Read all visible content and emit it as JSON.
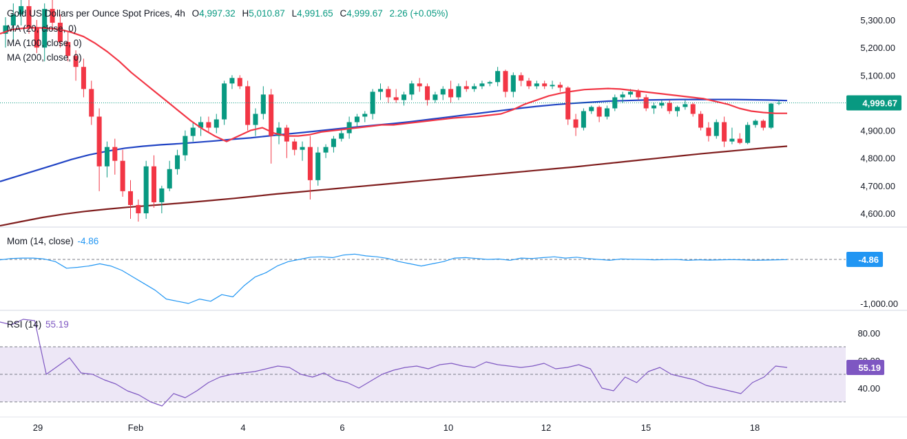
{
  "legend": {
    "symbol": "Gold US Dollars per Ounce Spot Prices",
    "interval": "4h",
    "o_label": "O",
    "o_value": "4,997.32",
    "h_label": "H",
    "h_value": "5,010.87",
    "l_label": "L",
    "l_value": "4,991.65",
    "c_label": "C",
    "c_value": "4,999.67",
    "change": "2.26 (+0.05%)",
    "ma20": "MA (20, close, 0)",
    "ma100": "MA (100, close, 0)",
    "ma200": "MA (200, close, 0)"
  },
  "mom": {
    "label": "Mom (14, close)",
    "value": "-4.86"
  },
  "rsi": {
    "label": "RSI (14)",
    "value": "55.19"
  },
  "colors": {
    "up": "#089981",
    "down": "#f23645",
    "ma20": "#f23645",
    "ma100": "#2144c4",
    "ma200": "#7f1d1d",
    "mom": "#2196f3",
    "rsi": "#7e57c2",
    "rsi_band": "#ede7f6"
  },
  "chart_data": [
    {
      "type": "candlestick",
      "title": "Gold US Dollars per Ounce Spot Prices, 4h",
      "ylim": [
        4560,
        5330
      ],
      "y_ticks": [
        "5,300.00",
        "5,200.00",
        "5,100.00",
        "5,000.00",
        "4,900.00",
        "4,800.00",
        "4,700.00",
        "4,600.00"
      ],
      "x_ticks": [
        "29",
        "Feb",
        "4",
        "6",
        "10",
        "12",
        "15",
        "18"
      ],
      "last_price_label": "4,999.67",
      "ohlc": [
        [
          5250,
          5310,
          5200,
          5280
        ],
        [
          5280,
          5360,
          5220,
          5320
        ],
        [
          5320,
          5380,
          5280,
          5350
        ],
        [
          5350,
          5380,
          5250,
          5270
        ],
        [
          5270,
          5300,
          5180,
          5200
        ],
        [
          5200,
          5360,
          5150,
          5340
        ],
        [
          5340,
          5400,
          5260,
          5290
        ],
        [
          5290,
          5320,
          5200,
          5220
        ],
        [
          5220,
          5260,
          5150,
          5170
        ],
        [
          5170,
          5190,
          5080,
          5130
        ],
        [
          5130,
          5160,
          5020,
          5050
        ],
        [
          5050,
          5080,
          4920,
          4950
        ],
        [
          4950,
          4980,
          4680,
          4770
        ],
        [
          4770,
          4860,
          4730,
          4840
        ],
        [
          4840,
          4870,
          4740,
          4790
        ],
        [
          4790,
          4830,
          4660,
          4680
        ],
        [
          4680,
          4720,
          4580,
          4630
        ],
        [
          4630,
          4650,
          4570,
          4600
        ],
        [
          4600,
          4790,
          4580,
          4770
        ],
        [
          4770,
          4810,
          4620,
          4640
        ],
        [
          4640,
          4700,
          4600,
          4690
        ],
        [
          4690,
          4790,
          4680,
          4760
        ],
        [
          4760,
          4830,
          4740,
          4810
        ],
        [
          4810,
          4900,
          4790,
          4880
        ],
        [
          4880,
          4930,
          4860,
          4910
        ],
        [
          4910,
          4950,
          4880,
          4930
        ],
        [
          4930,
          4950,
          4890,
          4910
        ],
        [
          4910,
          4960,
          4890,
          4940
        ],
        [
          4940,
          5080,
          4920,
          5070
        ],
        [
          5070,
          5100,
          5050,
          5090
        ],
        [
          5090,
          5100,
          5050,
          5060
        ],
        [
          5060,
          5080,
          4900,
          4920
        ],
        [
          4920,
          4980,
          4880,
          4960
        ],
        [
          4960,
          5060,
          4940,
          5030
        ],
        [
          5030,
          5050,
          4780,
          4880
        ],
        [
          4880,
          4930,
          4850,
          4910
        ],
        [
          4910,
          4920,
          4800,
          4860
        ],
        [
          4860,
          4870,
          4810,
          4830
        ],
        [
          4830,
          4860,
          4790,
          4840
        ],
        [
          4840,
          4880,
          4650,
          4720
        ],
        [
          4720,
          4840,
          4700,
          4820
        ],
        [
          4820,
          4850,
          4800,
          4840
        ],
        [
          4840,
          4880,
          4820,
          4870
        ],
        [
          4870,
          4900,
          4860,
          4890
        ],
        [
          4890,
          4950,
          4870,
          4930
        ],
        [
          4930,
          4960,
          4910,
          4950
        ],
        [
          4950,
          4970,
          4930,
          4960
        ],
        [
          4960,
          5050,
          4940,
          5040
        ],
        [
          5040,
          5070,
          5010,
          5050
        ],
        [
          5050,
          5060,
          5000,
          5020
        ],
        [
          5020,
          5050,
          5000,
          5010
        ],
        [
          5010,
          5040,
          4990,
          5030
        ],
        [
          5030,
          5080,
          5010,
          5070
        ],
        [
          5070,
          5090,
          5040,
          5060
        ],
        [
          5060,
          5070,
          4990,
          5010
        ],
        [
          5010,
          5040,
          5000,
          5030
        ],
        [
          5030,
          5060,
          5010,
          5050
        ],
        [
          5050,
          5080,
          5000,
          5020
        ],
        [
          5020,
          5070,
          5010,
          5060
        ],
        [
          5060,
          5080,
          5040,
          5050
        ],
        [
          5050,
          5070,
          5040,
          5060
        ],
        [
          5060,
          5080,
          5050,
          5070
        ],
        [
          5070,
          5080,
          5060,
          5075
        ],
        [
          5075,
          5130,
          5060,
          5115
        ],
        [
          5115,
          5120,
          5020,
          5040
        ],
        [
          5040,
          5110,
          5020,
          5100
        ],
        [
          5100,
          5110,
          5060,
          5080
        ],
        [
          5080,
          5090,
          5050,
          5060
        ],
        [
          5060,
          5080,
          5050,
          5070
        ],
        [
          5070,
          5080,
          5050,
          5060
        ],
        [
          5060,
          5080,
          5050,
          5065
        ],
        [
          5065,
          5075,
          5040,
          5055
        ],
        [
          5055,
          5060,
          4920,
          4940
        ],
        [
          4940,
          4960,
          4880,
          4910
        ],
        [
          4910,
          4980,
          4900,
          4970
        ],
        [
          4970,
          4990,
          4960,
          4985
        ],
        [
          4985,
          4990,
          4930,
          4950
        ],
        [
          4950,
          4990,
          4940,
          4980
        ],
        [
          4980,
          5030,
          4970,
          5020
        ],
        [
          5020,
          5040,
          5000,
          5030
        ],
        [
          5030,
          5050,
          5020,
          5040
        ],
        [
          5040,
          5050,
          5010,
          5020
        ],
        [
          5020,
          5030,
          4970,
          4980
        ],
        [
          4980,
          5000,
          4960,
          4990
        ],
        [
          4990,
          5010,
          4980,
          5000
        ],
        [
          5000,
          5010,
          4960,
          4970
        ],
        [
          4970,
          4990,
          4950,
          4985
        ],
        [
          4985,
          5010,
          4975,
          4995
        ],
        [
          4995,
          5000,
          4950,
          4960
        ],
        [
          4960,
          4970,
          4900,
          4910
        ],
        [
          4910,
          4930,
          4860,
          4880
        ],
        [
          4880,
          4940,
          4870,
          4930
        ],
        [
          4930,
          4950,
          4840,
          4860
        ],
        [
          4860,
          4910,
          4850,
          4870
        ],
        [
          4870,
          4890,
          4850,
          4855
        ],
        [
          4855,
          4930,
          4850,
          4920
        ],
        [
          4920,
          4940,
          4910,
          4935
        ],
        [
          4935,
          4940,
          4900,
          4910
        ],
        [
          4910,
          5000,
          4905,
          4997
        ],
        [
          4997.32,
          5010.87,
          4991.65,
          4999.67
        ]
      ],
      "ma20": [
        5250,
        5265,
        5270,
        5272,
        5270,
        5266,
        5255,
        5240,
        5215,
        5185,
        5150,
        5110,
        5075,
        5040,
        5005,
        4970,
        4935,
        4905,
        4880,
        4860,
        4880,
        4900,
        4910,
        4890,
        4880,
        4880,
        4885,
        4895,
        4900,
        4905,
        4910,
        4915,
        4920,
        4920,
        4925,
        4930,
        4935,
        4940,
        4945,
        4948,
        4950,
        4955,
        4960,
        4975,
        4995,
        5010,
        5025,
        5035,
        5042,
        5048,
        5050,
        5052,
        5050,
        5045,
        5040,
        5035,
        5030,
        5025,
        5020,
        5015,
        5005,
        4995,
        4980,
        4970,
        4965,
        4962,
        4962
      ],
      "ma100": [
        4715,
        4735,
        4755,
        4775,
        4795,
        4812,
        4825,
        4836,
        4843,
        4848,
        4852,
        4857,
        4862,
        4868,
        4873,
        4880,
        4887,
        4893,
        4900,
        4907,
        4913,
        4919,
        4925,
        4932,
        4940,
        4948,
        4956,
        4964,
        4972,
        4980,
        4987,
        4993,
        4998,
        5002,
        5006,
        5008,
        5010,
        5011,
        5012,
        5012,
        5012,
        5012,
        5011,
        5010,
        5008
      ],
      "ma200": [
        4555,
        4570,
        4585,
        4597,
        4607,
        4615,
        4622,
        4628,
        4634,
        4640,
        4647,
        4654,
        4662,
        4670,
        4677,
        4684,
        4691,
        4698,
        4705,
        4712,
        4719,
        4726,
        4733,
        4740,
        4747,
        4754,
        4761,
        4768,
        4776,
        4784,
        4792,
        4800,
        4808,
        4816,
        4823,
        4830,
        4837,
        4843
      ],
      "mom": [
        -10,
        20,
        30,
        30,
        10,
        -50,
        -200,
        -180,
        -150,
        -100,
        -150,
        -250,
        -400,
        -550,
        -700,
        -900,
        -950,
        -1000,
        -900,
        -950,
        -800,
        -850,
        -600,
        -400,
        -300,
        -150,
        -50,
        0,
        50,
        60,
        40,
        100,
        120,
        80,
        60,
        20,
        -50,
        -100,
        -150,
        -100,
        -50,
        30,
        40,
        20,
        0,
        10,
        -20,
        30,
        20,
        40,
        60,
        30,
        50,
        20,
        0,
        -20,
        10,
        5,
        0,
        -10,
        -5,
        0,
        -20,
        -10,
        -15,
        -10,
        -5,
        -10,
        -20,
        -15,
        -10,
        -5
      ],
      "mom_zero_label": "-4.86",
      "mom_ticks": [
        "-1,000.00"
      ],
      "rsi": [
        88,
        86,
        90,
        89,
        50,
        56,
        62,
        51,
        50,
        46,
        43,
        38,
        35,
        30,
        27,
        36,
        33,
        38,
        44,
        48,
        50,
        51,
        52,
        54,
        56,
        55,
        50,
        48,
        51,
        46,
        44,
        40,
        45,
        50,
        53,
        55,
        56,
        54,
        57,
        58,
        56,
        55,
        59,
        57,
        56,
        55,
        56,
        58,
        54,
        55,
        57,
        54,
        40,
        38,
        48,
        44,
        52,
        55,
        50,
        48,
        46,
        42,
        40,
        38,
        36,
        44,
        48,
        56,
        55
      ],
      "rsi_ticks": [
        "80.00",
        "60.00",
        "40.00"
      ],
      "rsi_band": [
        30,
        70
      ]
    }
  ]
}
